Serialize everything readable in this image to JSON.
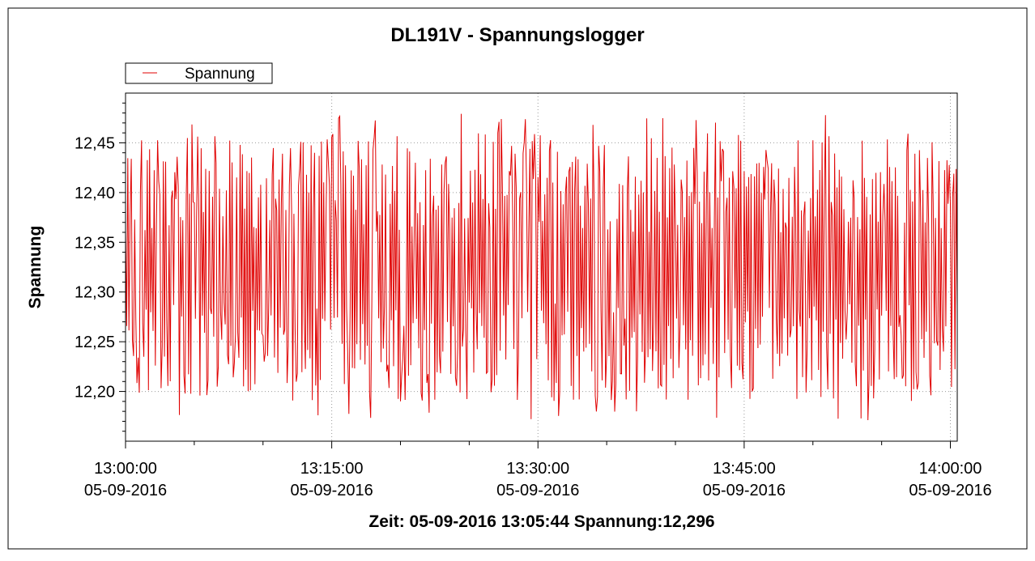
{
  "chart_data": {
    "type": "line",
    "title": "DL191V - Spannungslogger",
    "ylabel": "Spannung",
    "xlabel": "",
    "legend": {
      "entries": [
        "Spannung"
      ],
      "placement": "top-left"
    },
    "series": [
      {
        "name": "Spannung",
        "color": "#e00000",
        "x_start": "13:00:00",
        "x_end": "14:00:30",
        "values_min": 12.17,
        "values_max": 12.48,
        "pattern": "oscillating"
      }
    ],
    "xlim": [
      "13:00:00",
      "14:00:30"
    ],
    "ylim": [
      12.15,
      12.5
    ],
    "y_ticks": [
      "12,20",
      "12,25",
      "12,30",
      "12,35",
      "12,40",
      "12,45"
    ],
    "x_ticks": [
      {
        "time": "13:00:00",
        "date": "05-09-2016"
      },
      {
        "time": "13:15:00",
        "date": "05-09-2016"
      },
      {
        "time": "13:30:00",
        "date": "05-09-2016"
      },
      {
        "time": "13:45:00",
        "date": "05-09-2016"
      },
      {
        "time": "14:00:00",
        "date": "05-09-2016"
      }
    ],
    "grid": true,
    "status": "Zeit: 05-09-2016 13:05:44 Spannung:12,296"
  }
}
